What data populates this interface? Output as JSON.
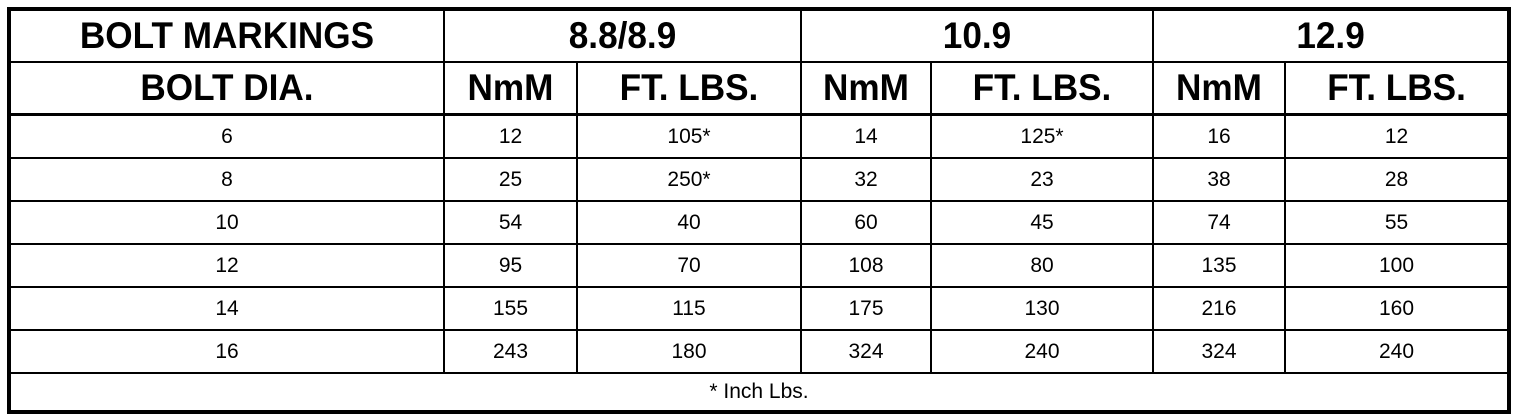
{
  "header": {
    "bolt_markings": "BOLT MARKINGS",
    "grades": [
      "8.8/8.9",
      "10.9",
      "12.9"
    ],
    "bolt_dia": "BOLT DIA.",
    "units": [
      "NmM",
      "FT. LBS.",
      "NmM",
      "FT. LBS.",
      "NmM",
      "FT. LBS."
    ]
  },
  "rows": [
    [
      "6",
      "12",
      "105*",
      "14",
      "125*",
      "16",
      "12"
    ],
    [
      "8",
      "25",
      "250*",
      "32",
      "23",
      "38",
      "28"
    ],
    [
      "10",
      "54",
      "40",
      "60",
      "45",
      "74",
      "55"
    ],
    [
      "12",
      "95",
      "70",
      "108",
      "80",
      "135",
      "100"
    ],
    [
      "14",
      "155",
      "115",
      "175",
      "130",
      "216",
      "160"
    ],
    [
      "16",
      "243",
      "180",
      "324",
      "240",
      "324",
      "240"
    ]
  ],
  "footnote": "* Inch Lbs."
}
